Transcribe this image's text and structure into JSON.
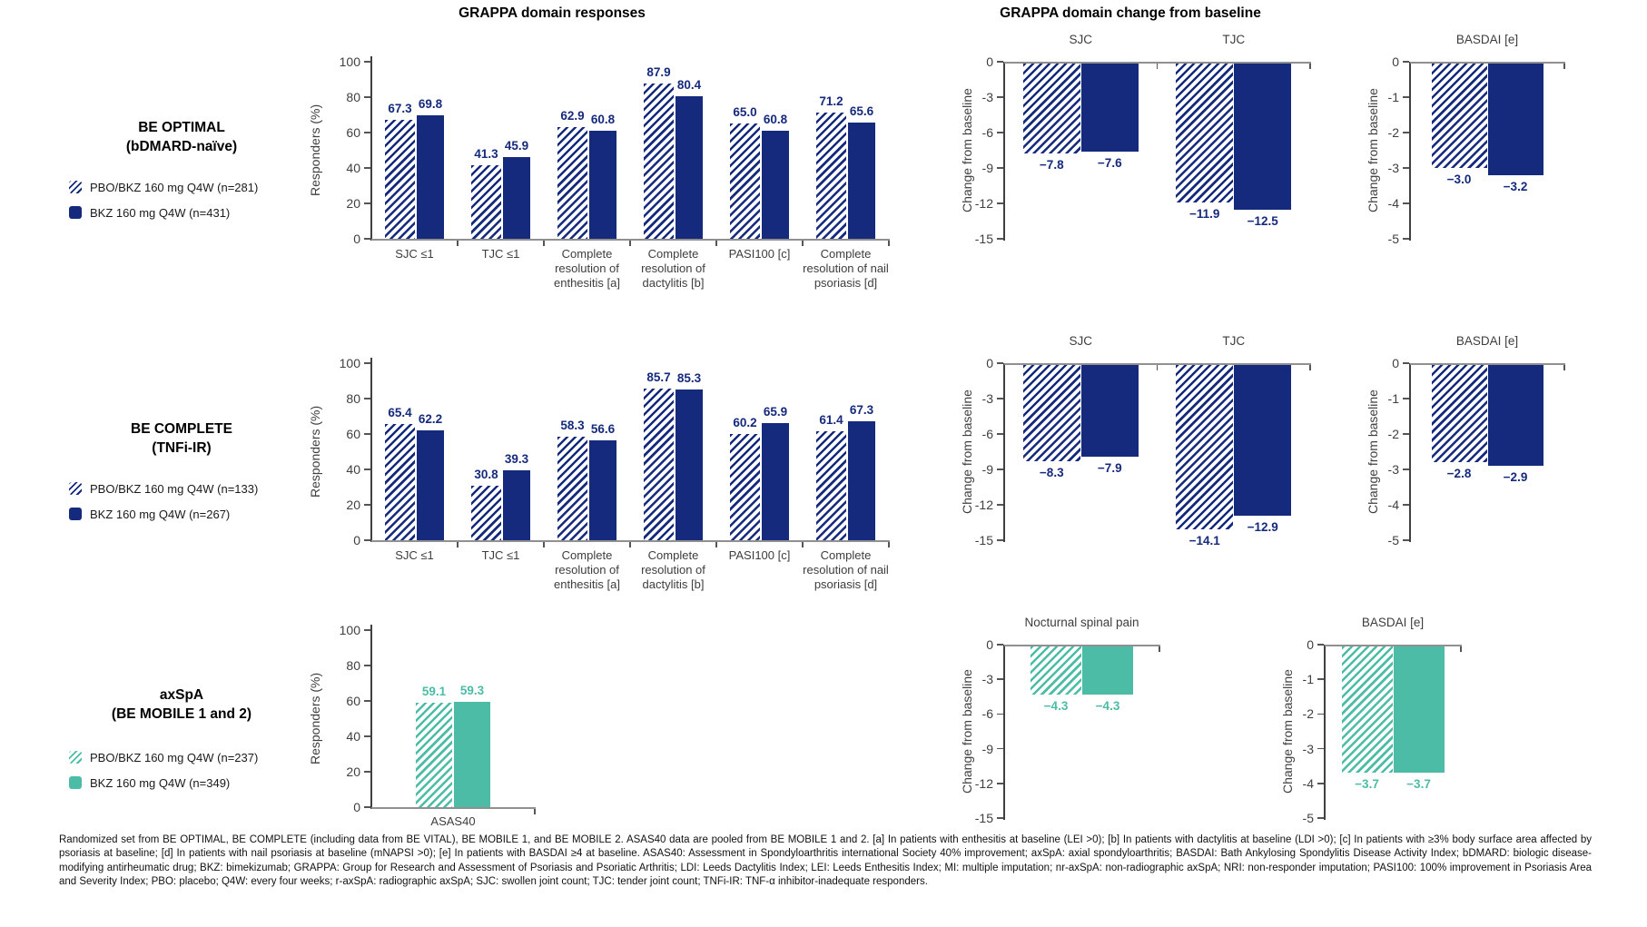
{
  "page_titles": {
    "responses": "GRAPPA domain responses",
    "change": "GRAPPA domain change from baseline"
  },
  "colors": {
    "navy": "#152a7c",
    "teal": "#4cbca7",
    "baseline_line": "#909090",
    "axis_line": "#404040",
    "tick_text": "#3d3d3d"
  },
  "chart_data": {
    "rows": [
      {
        "id": "be-optimal",
        "accent_color": "#152a7c",
        "title_lines": [
          "BE OPTIMAL",
          "(bDMARD-naïve)"
        ],
        "legend": [
          {
            "swatch": "hatched",
            "label": "PBO/BKZ 160 mg Q4W (n=281)"
          },
          {
            "swatch": "solid",
            "label": "BKZ 160 mg Q4W (n=431)"
          }
        ],
        "response_chart": {
          "type": "bar",
          "ylabel": "Responders (%)",
          "ylim": [
            0,
            100
          ],
          "yticks": [
            "0",
            "20",
            "40",
            "60",
            "80",
            "100"
          ],
          "categories": [
            "SJC ≤1",
            "TJC ≤1",
            "Complete resolution of enthesitis [a]",
            "Complete resolution of dactylitis [b]",
            "PASI100 [c]",
            "Complete resolution of nail psoriasis [d]"
          ],
          "series": [
            {
              "name": "PBO/BKZ 160 mg Q4W",
              "style": "hatched",
              "values": [
                67.3,
                41.3,
                62.9,
                87.9,
                65.0,
                71.2
              ],
              "labels": [
                "67.3",
                "41.3",
                "62.9",
                "87.9",
                "65.0",
                "71.2"
              ]
            },
            {
              "name": "BKZ 160 mg Q4W",
              "style": "solid",
              "values": [
                69.8,
                45.9,
                60.8,
                80.4,
                60.8,
                65.6
              ],
              "labels": [
                "69.8",
                "45.9",
                "60.8",
                "80.4",
                "60.8",
                "65.6"
              ]
            }
          ]
        },
        "change_charts": [
          {
            "type": "bar",
            "ylabel": "Change from baseline",
            "ylim": [
              -15,
              0
            ],
            "yticks": [
              "0",
              "-3",
              "-6",
              "-9",
              "-12",
              "-15"
            ],
            "groups": [
              {
                "title": "SJC",
                "values": [
                  -7.8,
                  -7.6
                ],
                "labels": [
                  "−7.8",
                  "−7.6"
                ]
              },
              {
                "title": "TJC",
                "values": [
                  -11.9,
                  -12.5
                ],
                "labels": [
                  "−11.9",
                  "−12.5"
                ]
              }
            ]
          },
          {
            "type": "bar",
            "ylabel": "Change from baseline",
            "ylim": [
              -5,
              0
            ],
            "yticks": [
              "0",
              "-1",
              "-2",
              "-3",
              "-4",
              "-5"
            ],
            "groups": [
              {
                "title": "BASDAI [e]",
                "values": [
                  -3.0,
                  -3.2
                ],
                "labels": [
                  "−3.0",
                  "−3.2"
                ]
              }
            ]
          }
        ]
      },
      {
        "id": "be-complete",
        "accent_color": "#152a7c",
        "title_lines": [
          "BE COMPLETE",
          "(TNFi-IR)"
        ],
        "legend": [
          {
            "swatch": "hatched",
            "label": "PBO/BKZ 160 mg Q4W (n=133)"
          },
          {
            "swatch": "solid",
            "label": "BKZ 160 mg Q4W (n=267)"
          }
        ],
        "response_chart": {
          "type": "bar",
          "ylabel": "Responders (%)",
          "ylim": [
            0,
            100
          ],
          "yticks": [
            "0",
            "20",
            "40",
            "60",
            "80",
            "100"
          ],
          "categories": [
            "SJC ≤1",
            "TJC ≤1",
            "Complete resolution of enthesitis [a]",
            "Complete resolution of dactylitis [b]",
            "PASI100 [c]",
            "Complete resolution of nail psoriasis [d]"
          ],
          "series": [
            {
              "name": "PBO/BKZ 160 mg Q4W",
              "style": "hatched",
              "values": [
                65.4,
                30.8,
                58.3,
                85.7,
                60.2,
                61.4
              ],
              "labels": [
                "65.4",
                "30.8",
                "58.3",
                "85.7",
                "60.2",
                "61.4"
              ]
            },
            {
              "name": "BKZ 160 mg Q4W",
              "style": "solid",
              "values": [
                62.2,
                39.3,
                56.6,
                85.3,
                65.9,
                67.3
              ],
              "labels": [
                "62.2",
                "39.3",
                "56.6",
                "85.3",
                "65.9",
                "67.3"
              ]
            }
          ]
        },
        "change_charts": [
          {
            "type": "bar",
            "ylabel": "Change from baseline",
            "ylim": [
              -15,
              0
            ],
            "yticks": [
              "0",
              "-3",
              "-6",
              "-9",
              "-12",
              "-15"
            ],
            "groups": [
              {
                "title": "SJC",
                "values": [
                  -8.3,
                  -7.9
                ],
                "labels": [
                  "−8.3",
                  "−7.9"
                ]
              },
              {
                "title": "TJC",
                "values": [
                  -14.1,
                  -12.9
                ],
                "labels": [
                  "−14.1",
                  "−12.9"
                ]
              }
            ]
          },
          {
            "type": "bar",
            "ylabel": "Change from baseline",
            "ylim": [
              -5,
              0
            ],
            "yticks": [
              "0",
              "-1",
              "-2",
              "-3",
              "-4",
              "-5"
            ],
            "groups": [
              {
                "title": "BASDAI [e]",
                "values": [
                  -2.8,
                  -2.9
                ],
                "labels": [
                  "−2.8",
                  "−2.9"
                ]
              }
            ]
          }
        ]
      },
      {
        "id": "axspa",
        "accent_color": "#4cbca7",
        "title_lines": [
          "axSpA",
          "(BE MOBILE 1 and 2)"
        ],
        "legend": [
          {
            "swatch": "hatched",
            "label": "PBO/BKZ 160 mg Q4W (n=237)"
          },
          {
            "swatch": "solid",
            "label": "BKZ 160 mg Q4W (n=349)"
          }
        ],
        "response_chart": {
          "type": "bar",
          "ylabel": "Responders (%)",
          "ylim": [
            0,
            100
          ],
          "yticks": [
            "0",
            "20",
            "40",
            "60",
            "80",
            "100"
          ],
          "categories": [
            "ASAS40"
          ],
          "series": [
            {
              "name": "PBO/BKZ 160 mg Q4W",
              "style": "hatched",
              "values": [
                59.1
              ],
              "labels": [
                "59.1"
              ]
            },
            {
              "name": "BKZ 160 mg Q4W",
              "style": "solid",
              "values": [
                59.3
              ],
              "labels": [
                "59.3"
              ]
            }
          ]
        },
        "change_charts": [
          {
            "type": "bar",
            "ylabel": "Change from baseline",
            "ylim": [
              -15,
              0
            ],
            "yticks": [
              "0",
              "-3",
              "-6",
              "-9",
              "-12",
              "-15"
            ],
            "groups": [
              {
                "title": "Nocturnal spinal pain",
                "values": [
                  -4.3,
                  -4.3
                ],
                "labels": [
                  "−4.3",
                  "−4.3"
                ]
              }
            ]
          },
          {
            "type": "bar",
            "ylabel": "Change from baseline",
            "ylim": [
              -5,
              0
            ],
            "yticks": [
              "0",
              "-1",
              "-2",
              "-3",
              "-4",
              "-5"
            ],
            "groups": [
              {
                "title": "BASDAI [e]",
                "values": [
                  -3.7,
                  -3.7
                ],
                "labels": [
                  "−3.7",
                  "−3.7"
                ]
              }
            ]
          }
        ]
      }
    ]
  },
  "footnote": "Randomized set from BE OPTIMAL, BE COMPLETE (including data from BE VITAL), BE MOBILE 1, and BE MOBILE 2. ASAS40 data are pooled from BE MOBILE 1 and 2. [a] In patients with enthesitis at baseline (LEI >0); [b] In patients with dactylitis at baseline (LDI >0); [c] In patients with ≥3% body surface area affected by psoriasis at baseline; [d] In patients with nail psoriasis at baseline (mNAPSI >0); [e] In patients with BASDAI ≥4 at baseline. ASAS40: Assessment in Spondyloarthritis international Society 40% improvement; axSpA: axial spondyloarthritis; BASDAI: Bath Ankylosing Spondylitis Disease Activity Index; bDMARD: biologic disease-modifying antirheumatic drug; BKZ: bimekizumab; GRAPPA: Group for Research and Assessment of Psoriasis and Psoriatic Arthritis; LDI: Leeds Dactylitis Index; LEI: Leeds Enthesitis Index; MI: multiple imputation; nr-axSpA: non-radiographic axSpA; NRI: non-responder imputation; PASI100: 100% improvement in Psoriasis Area and Severity Index; PBO: placebo; Q4W: every four weeks; r-axSpA: radiographic axSpA; SJC: swollen joint count; TJC: tender joint count; TNFi-IR: TNF-α inhibitor-inadequate responders."
}
